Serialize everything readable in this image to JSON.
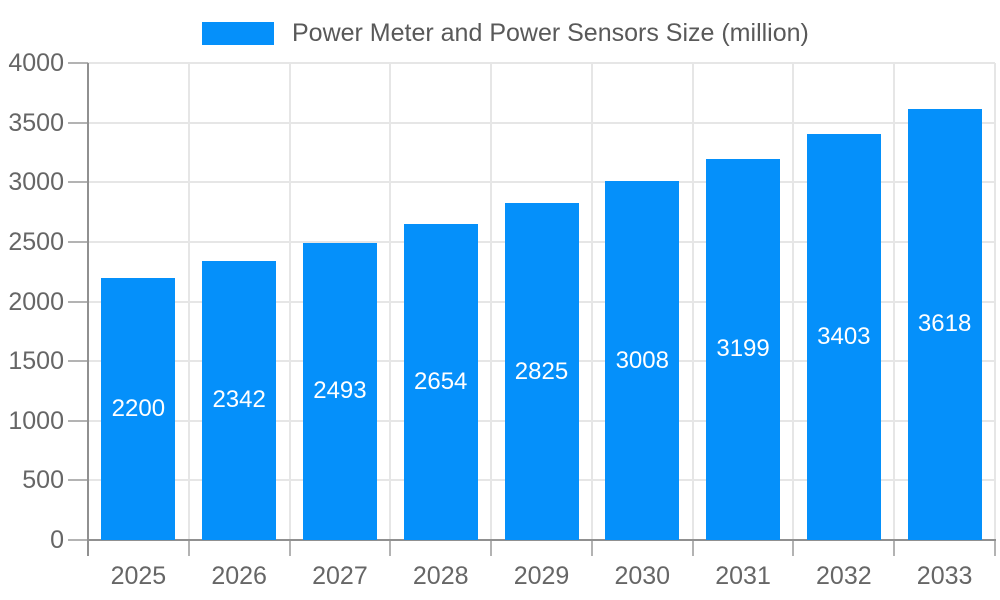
{
  "legend": {
    "label": "Power Meter and Power Sensors Size (million)"
  },
  "chart_data": {
    "type": "bar",
    "title": "Power Meter and Power Sensors Size (million)",
    "categories": [
      "2025",
      "2026",
      "2027",
      "2028",
      "2029",
      "2030",
      "2031",
      "2032",
      "2033"
    ],
    "series": [
      {
        "name": "Power Meter and Power Sensors Size (million)",
        "values": [
          2200,
          2342,
          2493,
          2654,
          2825,
          3008,
          3199,
          3403,
          3618
        ]
      }
    ],
    "xlabel": "",
    "ylabel": "",
    "ylim": [
      0,
      4000
    ],
    "yticks": [
      0,
      500,
      1000,
      1500,
      2000,
      2500,
      3000,
      3500,
      4000
    ],
    "grid": true,
    "legend_position": "top-center",
    "value_label_position": "inside-center",
    "colors": {
      "bar": "#0590fa",
      "grid_line": "#e6e6e6",
      "axis_line": "#909090",
      "tick_mark": "#b3b3b3",
      "tick_label": "#666666",
      "value_label": "#ffffff",
      "legend_text": "#595959"
    }
  }
}
